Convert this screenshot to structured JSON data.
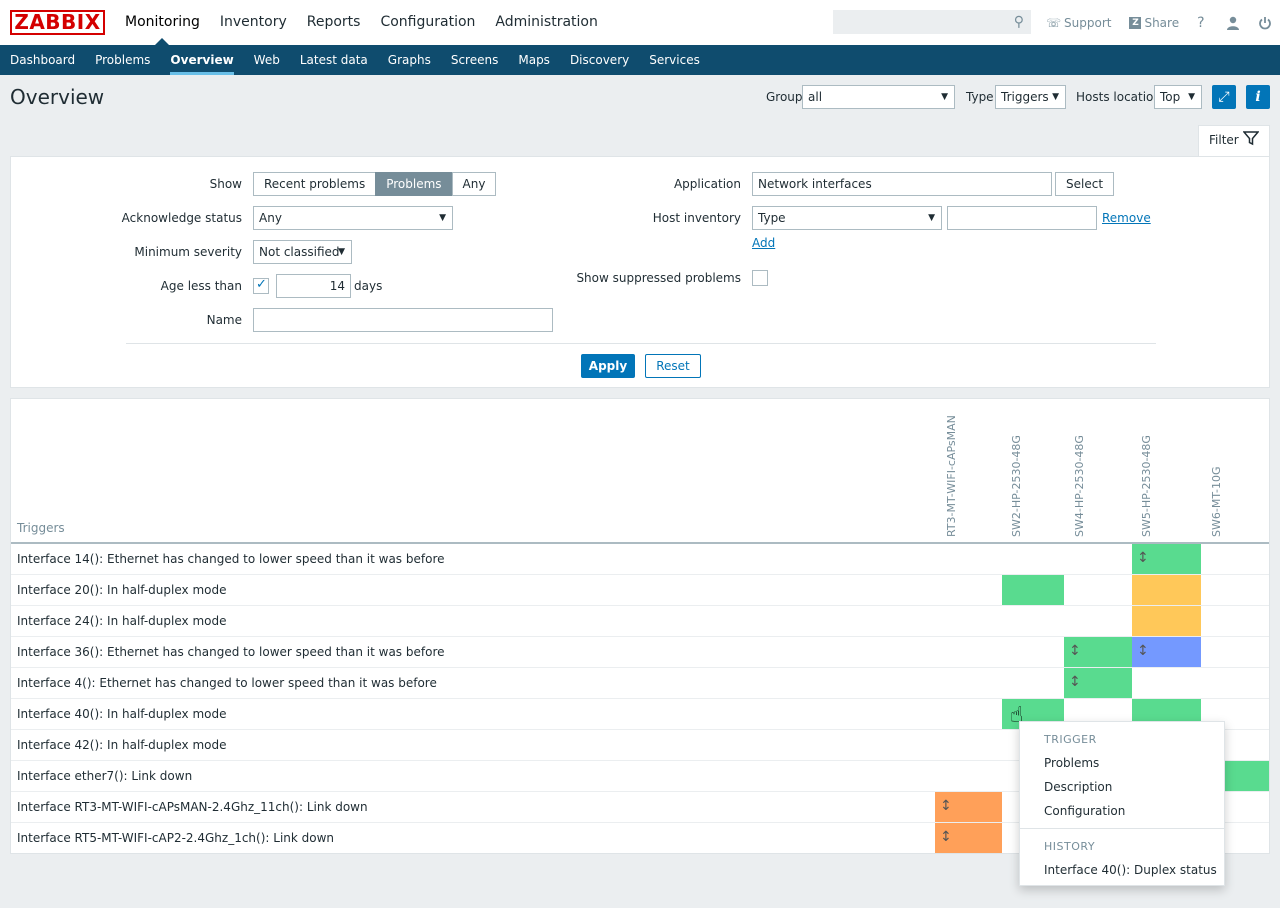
{
  "header": {
    "logo": "ZABBIX",
    "menu": [
      "Monitoring",
      "Inventory",
      "Reports",
      "Configuration",
      "Administration"
    ],
    "search_icon": "search-icon",
    "support": "Support",
    "share": "Share",
    "help": "?",
    "share_badge": "Z"
  },
  "submenu": [
    "Dashboard",
    "Problems",
    "Overview",
    "Web",
    "Latest data",
    "Graphs",
    "Screens",
    "Maps",
    "Discovery",
    "Services"
  ],
  "page": {
    "title": "Overview",
    "group_label": "Group",
    "group_value": "all",
    "type_label": "Type",
    "type_value": "Triggers",
    "hosts_location_label": "Hosts location",
    "hosts_location_value": "Top"
  },
  "filter": {
    "tab_label": "Filter",
    "show_label": "Show",
    "show_options": [
      "Recent problems",
      "Problems",
      "Any"
    ],
    "ack_label": "Acknowledge status",
    "ack_value": "Any",
    "severity_label": "Minimum severity",
    "severity_value": "Not classified",
    "age_label": "Age less than",
    "age_value": "14",
    "age_unit": "days",
    "name_label": "Name",
    "name_value": "",
    "application_label": "Application",
    "application_value": "Network interfaces",
    "select_label": "Select",
    "inventory_label": "Host inventory",
    "inventory_type": "Type",
    "inventory_value": "",
    "remove_label": "Remove",
    "add_label": "Add",
    "suppressed_label": "Show suppressed problems",
    "apply_label": "Apply",
    "reset_label": "Reset"
  },
  "overview": {
    "triggers_header": "Triggers",
    "hosts": [
      "RT3-MT-WIFI-cAPsMAN",
      "SW2-HP-2530-48G",
      "SW4-HP-2530-48G",
      "SW5-HP-2530-48G",
      "SW6-MT-10G"
    ],
    "rows": [
      "Interface 14(): Ethernet has changed to lower speed than it was before",
      "Interface 20(): In half-duplex mode",
      "Interface 24(): In half-duplex mode",
      "Interface 36(): Ethernet has changed to lower speed than it was before",
      "Interface 4(): Ethernet has changed to lower speed than it was before",
      "Interface 40(): In half-duplex mode",
      "Interface 42(): In half-duplex mode",
      "Interface ether7(): Link down",
      "Interface RT3-MT-WIFI-cAPsMAN-2.4Ghz_11ch(): Link down",
      "Interface RT5-MT-WIFI-cAP2-2.4Ghz_1ch(): Link down"
    ],
    "colors": {
      "green": "#59db8f",
      "yellow": "#ffc859",
      "orange": "#ffa059",
      "blue": "#7499ff"
    }
  },
  "context_menu": {
    "trigger_header": "TRIGGER",
    "items": [
      "Problems",
      "Description",
      "Configuration"
    ],
    "history_header": "HISTORY",
    "history_items": [
      "Interface 40(): Duplex status"
    ]
  }
}
